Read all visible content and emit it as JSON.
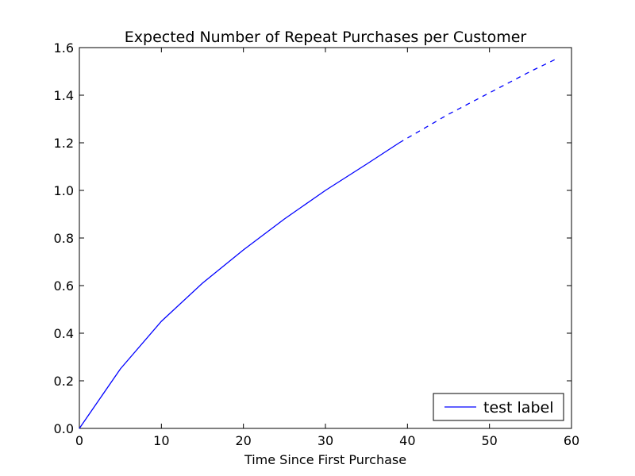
{
  "chart_data": {
    "type": "line",
    "title": "Expected Number of Repeat Purchases per Customer",
    "xlabel": "Time Since First Purchase",
    "ylabel": "",
    "xlim": [
      0,
      60
    ],
    "ylim": [
      0.0,
      1.6
    ],
    "x_ticks": [
      0,
      10,
      20,
      30,
      40,
      50,
      60
    ],
    "y_ticks": [
      0.0,
      0.2,
      0.4,
      0.6,
      0.8,
      1.0,
      1.2,
      1.4,
      1.6
    ],
    "x_tick_labels": [
      "0",
      "10",
      "20",
      "30",
      "40",
      "50",
      "60"
    ],
    "y_tick_labels": [
      "0.0",
      "0.2",
      "0.4",
      "0.6",
      "0.8",
      "1.0",
      "1.2",
      "1.4",
      "1.6"
    ],
    "grid": false,
    "legend_position": "lower-right",
    "series": [
      {
        "name": "test label",
        "color": "#0000ff",
        "style": "solid",
        "x": [
          0,
          5,
          10,
          15,
          20,
          25,
          30,
          35,
          39
        ],
        "y": [
          0.0,
          0.25,
          0.45,
          0.61,
          0.75,
          0.88,
          1.0,
          1.11,
          1.2
        ]
      },
      {
        "name": "",
        "color": "#0000ff",
        "style": "dashed",
        "x": [
          39,
          45,
          50,
          55,
          58
        ],
        "y": [
          1.2,
          1.32,
          1.41,
          1.5,
          1.55
        ]
      }
    ]
  }
}
